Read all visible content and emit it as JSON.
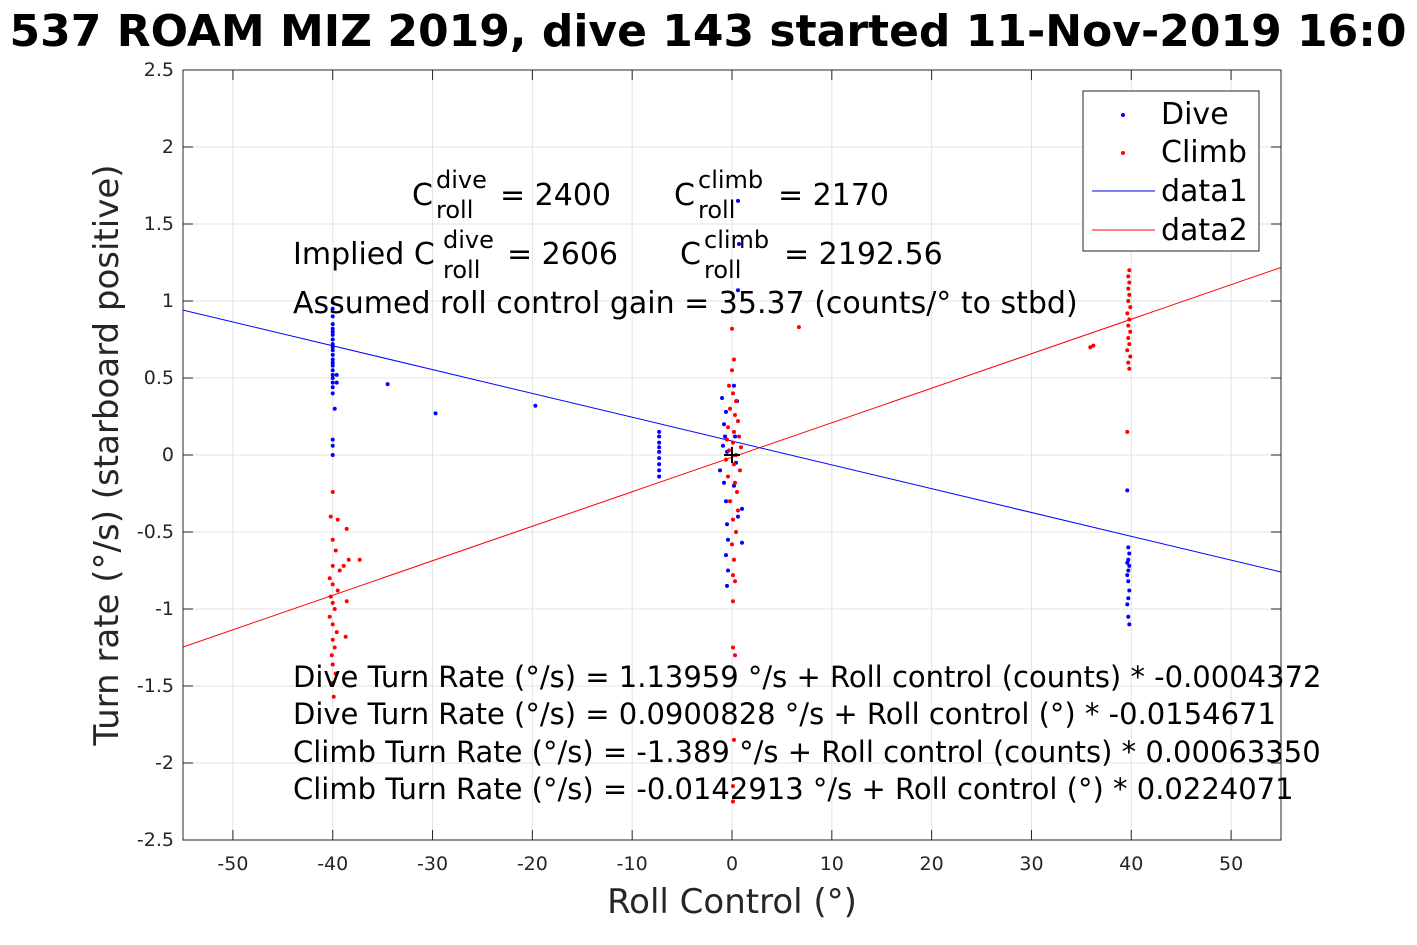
{
  "chart_data": {
    "type": "scatter",
    "title": "537 ROAM MIZ 2019, dive 143 started 11-Nov-2019 16:0",
    "xlabel": "Roll Control (°)",
    "ylabel": "Turn rate (°/s) (starboard positive)",
    "xlim": [
      -55,
      55
    ],
    "ylim": [
      -2.5,
      2.5
    ],
    "x_ticks": [
      -50,
      -40,
      -30,
      -20,
      -10,
      0,
      10,
      20,
      30,
      40,
      50
    ],
    "y_ticks": [
      -2.5,
      -2,
      -1.5,
      -1,
      -0.5,
      0,
      0.5,
      1,
      1.5,
      2,
      2.5
    ],
    "grid": true,
    "legend_location": "top-right",
    "legend": [
      "Dive",
      "Climb",
      "data1",
      "data2"
    ],
    "colors": {
      "dive": "#0000ff",
      "climb": "#ff0000",
      "origin_marker": "#000000"
    },
    "series": [
      {
        "name": "Dive",
        "style": "points",
        "points": [
          [
            -40,
            0.99
          ],
          [
            -40,
            0.95
          ],
          [
            -40,
            0.9
          ],
          [
            -40,
            0.85
          ],
          [
            -40,
            0.82
          ],
          [
            -40,
            0.8
          ],
          [
            -40,
            0.78
          ],
          [
            -40,
            0.75
          ],
          [
            -40,
            0.72
          ],
          [
            -40,
            0.7
          ],
          [
            -40,
            0.68
          ],
          [
            -40,
            0.65
          ],
          [
            -40,
            0.62
          ],
          [
            -40,
            0.6
          ],
          [
            -40,
            0.58
          ],
          [
            -40,
            0.55
          ],
          [
            -40,
            0.52
          ],
          [
            -40,
            0.5
          ],
          [
            -40,
            0.47
          ],
          [
            -40,
            0.44
          ],
          [
            -40,
            0.4
          ],
          [
            -39.6,
            0.47
          ],
          [
            -39.6,
            0.52
          ],
          [
            -39.8,
            0.3
          ],
          [
            -40,
            0.1
          ],
          [
            -40,
            0.06
          ],
          [
            -40,
            0.0
          ],
          [
            -34.5,
            0.46
          ],
          [
            -29.7,
            0.27
          ],
          [
            -19.7,
            0.32
          ],
          [
            -7.3,
            0.15
          ],
          [
            -7.3,
            0.12
          ],
          [
            -7.3,
            0.08
          ],
          [
            -7.3,
            0.05
          ],
          [
            -7.3,
            0.02
          ],
          [
            -7.3,
            -0.02
          ],
          [
            -7.3,
            -0.06
          ],
          [
            -7.3,
            -0.1
          ],
          [
            -7.3,
            -0.14
          ],
          [
            -1.0,
            0.37
          ],
          [
            -0.6,
            0.28
          ],
          [
            -0.8,
            0.2
          ],
          [
            -0.7,
            0.12
          ],
          [
            -0.9,
            0.06
          ],
          [
            -0.5,
            0.02
          ],
          [
            -1.2,
            -0.1
          ],
          [
            -0.8,
            -0.18
          ],
          [
            -0.6,
            -0.3
          ],
          [
            -0.5,
            -0.45
          ],
          [
            -0.4,
            -0.55
          ],
          [
            -0.6,
            -0.65
          ],
          [
            -0.5,
            -0.85
          ],
          [
            -0.4,
            -0.75
          ],
          [
            0.2,
            0.45
          ],
          [
            0.5,
            0.35
          ],
          [
            0.3,
            0.12
          ],
          [
            0.4,
            -0.05
          ],
          [
            0.2,
            -0.2
          ],
          [
            0.6,
            -0.4
          ],
          [
            0.6,
            1.65
          ],
          [
            0.7,
            1.37
          ],
          [
            0.6,
            1.07
          ],
          [
            1.0,
            -0.35
          ],
          [
            1.0,
            -0.57
          ],
          [
            39.6,
            -0.23
          ],
          [
            39.7,
            -0.6
          ],
          [
            39.8,
            -0.64
          ],
          [
            39.7,
            -0.68
          ],
          [
            39.6,
            -0.7
          ],
          [
            39.8,
            -0.72
          ],
          [
            39.7,
            -0.75
          ],
          [
            39.6,
            -0.78
          ],
          [
            39.7,
            -0.82
          ],
          [
            39.8,
            -0.88
          ],
          [
            39.7,
            -0.93
          ],
          [
            39.6,
            -0.97
          ],
          [
            39.7,
            -1.05
          ],
          [
            39.8,
            -1.1
          ]
        ]
      },
      {
        "name": "Climb",
        "style": "points",
        "points": [
          [
            -40,
            -0.24
          ],
          [
            -40.2,
            -0.4
          ],
          [
            -39.5,
            -0.42
          ],
          [
            -38.6,
            -0.48
          ],
          [
            -40,
            -0.55
          ],
          [
            -39.7,
            -0.62
          ],
          [
            -38.4,
            -0.68
          ],
          [
            -37.3,
            -0.68
          ],
          [
            -40,
            -0.72
          ],
          [
            -39.3,
            -0.75
          ],
          [
            -40.3,
            -0.8
          ],
          [
            -40,
            -0.84
          ],
          [
            -39.5,
            -0.88
          ],
          [
            -40.2,
            -0.92
          ],
          [
            -40,
            -0.96
          ],
          [
            -39.8,
            -1.0
          ],
          [
            -40.3,
            -1.05
          ],
          [
            -40,
            -1.1
          ],
          [
            -39.6,
            -1.15
          ],
          [
            -40,
            -1.2
          ],
          [
            -38.7,
            -1.18
          ],
          [
            -39.8,
            -1.25
          ],
          [
            -40.1,
            -1.3
          ],
          [
            -40,
            -1.36
          ],
          [
            -39.7,
            -1.42
          ],
          [
            -40,
            -1.48
          ],
          [
            -39.9,
            -1.57
          ],
          [
            -38.6,
            -0.95
          ],
          [
            -38.9,
            -0.72
          ],
          [
            0,
            0.82
          ],
          [
            0.2,
            0.62
          ],
          [
            0,
            0.55
          ],
          [
            -0.3,
            0.45
          ],
          [
            0.1,
            0.4
          ],
          [
            0.4,
            0.35
          ],
          [
            -0.2,
            0.3
          ],
          [
            0.3,
            0.26
          ],
          [
            0.6,
            0.22
          ],
          [
            -0.4,
            0.18
          ],
          [
            0.2,
            0.15
          ],
          [
            0.7,
            0.12
          ],
          [
            -0.5,
            0.1
          ],
          [
            0.1,
            0.08
          ],
          [
            0.9,
            0.05
          ],
          [
            -0.3,
            0.03
          ],
          [
            0.4,
            0.0
          ],
          [
            -0.6,
            -0.03
          ],
          [
            0.2,
            -0.06
          ],
          [
            0.8,
            -0.1
          ],
          [
            -0.4,
            -0.14
          ],
          [
            0.3,
            -0.18
          ],
          [
            0.5,
            -0.24
          ],
          [
            -0.2,
            -0.3
          ],
          [
            0.6,
            -0.36
          ],
          [
            0.1,
            -0.42
          ],
          [
            0.4,
            -0.5
          ],
          [
            0,
            -0.58
          ],
          [
            0.2,
            -0.68
          ],
          [
            0.1,
            -0.78
          ],
          [
            0.3,
            -0.82
          ],
          [
            0.1,
            -0.95
          ],
          [
            0.1,
            -1.25
          ],
          [
            0.3,
            -1.3
          ],
          [
            0.2,
            -1.85
          ],
          [
            0.1,
            -2.15
          ],
          [
            0.1,
            -2.25
          ],
          [
            6.7,
            0.83
          ],
          [
            35.9,
            0.7
          ],
          [
            36.2,
            0.71
          ],
          [
            39.6,
            0.15
          ],
          [
            39.8,
            0.56
          ],
          [
            39.7,
            0.6
          ],
          [
            39.9,
            0.64
          ],
          [
            39.6,
            0.68
          ],
          [
            39.8,
            0.72
          ],
          [
            39.7,
            0.76
          ],
          [
            39.9,
            0.8
          ],
          [
            39.7,
            0.84
          ],
          [
            39.8,
            0.88
          ],
          [
            39.6,
            0.92
          ],
          [
            39.9,
            0.96
          ],
          [
            39.7,
            1.0
          ],
          [
            39.8,
            1.04
          ],
          [
            39.7,
            1.08
          ],
          [
            39.8,
            1.12
          ],
          [
            39.7,
            1.16
          ],
          [
            39.8,
            1.2
          ]
        ]
      },
      {
        "name": "data1",
        "style": "line",
        "points": [
          [
            -55,
            0.941
          ],
          [
            55,
            -0.76
          ]
        ]
      },
      {
        "name": "data2",
        "style": "line",
        "points": [
          [
            -55,
            -1.247
          ],
          [
            55,
            1.218
          ]
        ]
      }
    ],
    "origin_marker": [
      0,
      0
    ],
    "annotations": {
      "c_dive_label": "C",
      "c_dive_sup": "dive",
      "c_dive_sub": "roll",
      "c_dive_value": "= 2400",
      "c_climb_label": "C",
      "c_climb_sup": "climb",
      "c_climb_sub": "roll",
      "c_climb_value": "= 2170",
      "implied_prefix": "Implied C",
      "implied_dive_sup": "dive",
      "implied_dive_sub": "roll",
      "implied_dive_value": "= 2606",
      "implied_climb_label": "C",
      "implied_climb_sup": "climb",
      "implied_climb_sub": "roll",
      "implied_climb_value": "= 2192.56",
      "gain": "Assumed roll control gain = 35.37 (counts/° to stbd)",
      "eq1": "Dive Turn Rate (°/s) = 1.13959 °/s + Roll control (counts) * -0.0004372",
      "eq2": "Dive Turn Rate (°/s) = 0.0900828 °/s + Roll control (°) * -0.0154671",
      "eq3": "Climb Turn Rate (°/s) = -1.389 °/s + Roll control (counts) * 0.00063350",
      "eq4": "Climb Turn Rate (°/s) = -0.0142913 °/s + Roll control (°) * 0.0224071"
    }
  }
}
